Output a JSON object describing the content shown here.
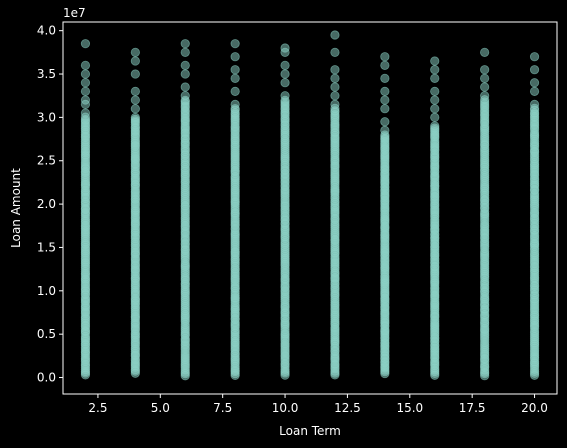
{
  "chart_data": {
    "type": "scatter",
    "title": "",
    "xlabel": "Loan Term",
    "ylabel": "Loan Amount",
    "y_offset_label": "1e7",
    "xlim": [
      1.1,
      20.9
    ],
    "ylim": [
      -0.19,
      4.1
    ],
    "y_multiplier": 10000000,
    "x_ticks": [
      2.5,
      5.0,
      7.5,
      10.0,
      12.5,
      15.0,
      17.5,
      20.0
    ],
    "x_tick_labels": [
      "2.5",
      "5.0",
      "7.5",
      "10.0",
      "12.5",
      "15.0",
      "17.5",
      "20.0"
    ],
    "y_ticks": [
      0.0,
      0.5,
      1.0,
      1.5,
      2.0,
      2.5,
      3.0,
      3.5,
      4.0
    ],
    "y_tick_labels": [
      "0.0",
      "0.5",
      "1.0",
      "1.5",
      "2.0",
      "2.5",
      "3.0",
      "3.5",
      "4.0"
    ],
    "point_color": "#8dd3c7",
    "background": "#000000",
    "foreground": "#ffffff",
    "series": [
      {
        "x": 2,
        "dense_min": 0.03,
        "dense_max": 3.0,
        "outliers": [
          3.05,
          3.15,
          3.2,
          3.3,
          3.4,
          3.5,
          3.6,
          3.85
        ]
      },
      {
        "x": 4,
        "dense_min": 0.05,
        "dense_max": 3.0,
        "outliers": [
          3.1,
          3.2,
          3.3,
          3.5,
          3.65,
          3.75
        ]
      },
      {
        "x": 6,
        "dense_min": 0.02,
        "dense_max": 3.2,
        "outliers": [
          3.25,
          3.35,
          3.5,
          3.6,
          3.75,
          3.85
        ]
      },
      {
        "x": 8,
        "dense_min": 0.02,
        "dense_max": 3.1,
        "outliers": [
          3.15,
          3.3,
          3.45,
          3.55,
          3.7,
          3.85
        ]
      },
      {
        "x": 10,
        "dense_min": 0.03,
        "dense_max": 3.2,
        "outliers": [
          3.25,
          3.4,
          3.5,
          3.6,
          3.75,
          3.8
        ]
      },
      {
        "x": 12,
        "dense_min": 0.03,
        "dense_max": 3.1,
        "outliers": [
          3.15,
          3.25,
          3.35,
          3.45,
          3.55,
          3.75,
          3.95
        ]
      },
      {
        "x": 14,
        "dense_min": 0.05,
        "dense_max": 2.8,
        "outliers": [
          2.85,
          2.95,
          3.1,
          3.2,
          3.3,
          3.45,
          3.6,
          3.7
        ]
      },
      {
        "x": 16,
        "dense_min": 0.03,
        "dense_max": 2.9,
        "outliers": [
          3.0,
          3.1,
          3.2,
          3.3,
          3.45,
          3.55,
          3.65
        ]
      },
      {
        "x": 18,
        "dense_min": 0.02,
        "dense_max": 3.2,
        "outliers": [
          3.25,
          3.35,
          3.45,
          3.55,
          3.75
        ]
      },
      {
        "x": 20,
        "dense_min": 0.03,
        "dense_max": 3.1,
        "outliers": [
          3.15,
          3.3,
          3.4,
          3.55,
          3.7
        ]
      }
    ]
  }
}
